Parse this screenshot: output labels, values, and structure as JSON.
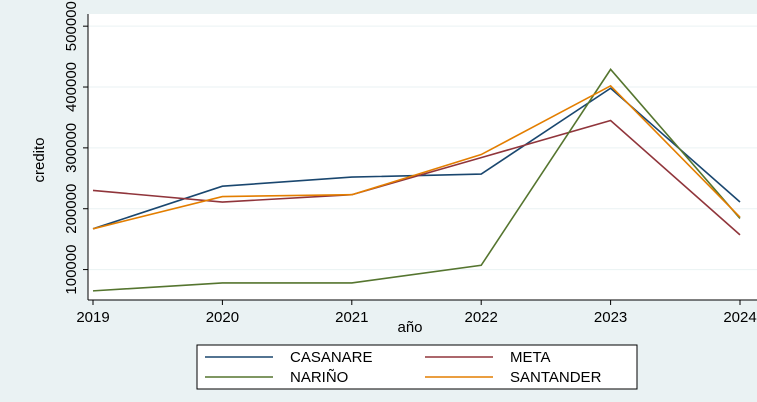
{
  "chart_data": {
    "type": "line",
    "x": [
      2019,
      2020,
      2021,
      2022,
      2023,
      2024
    ],
    "xlim": [
      2019,
      2024
    ],
    "xticks": [
      2019,
      2020,
      2021,
      2022,
      2023,
      2024
    ],
    "ylim": [
      50000,
      520000
    ],
    "yticks": [
      100000,
      200000,
      300000,
      400000,
      500000
    ],
    "xlabel": "año",
    "ylabel": "credito",
    "grid": true,
    "series": [
      {
        "name": "CASANARE",
        "color": "#1a476f",
        "values": [
          167000,
          237000,
          252000,
          257000,
          398000,
          211000
        ]
      },
      {
        "name": "META",
        "color": "#90353b",
        "values": [
          230000,
          211000,
          223000,
          284000,
          345000,
          157000
        ]
      },
      {
        "name": "NARIÑO",
        "color": "#55752f",
        "values": [
          65000,
          78000,
          78000,
          107000,
          429000,
          184000
        ]
      },
      {
        "name": "SANTANDER",
        "color": "#e37e00",
        "values": [
          167000,
          220000,
          223000,
          289000,
          402000,
          186000
        ]
      }
    ]
  }
}
